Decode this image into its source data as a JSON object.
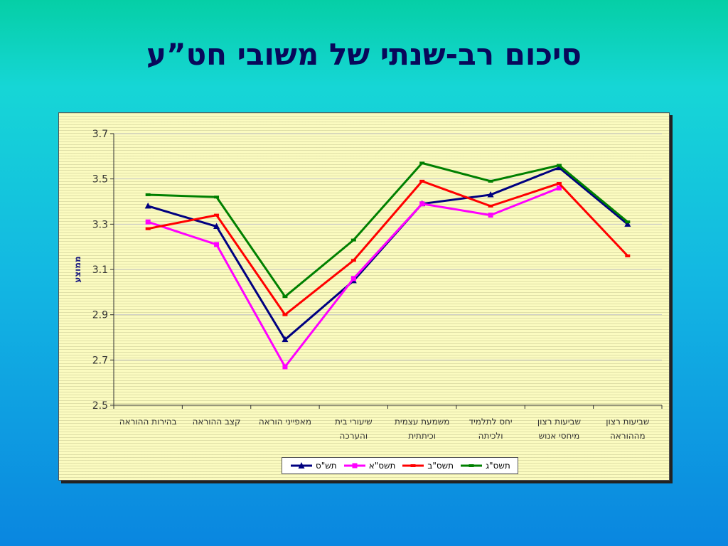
{
  "slide": {
    "title": "סיכום רב-שנתי של משובי חט”ע"
  },
  "chart_data": {
    "type": "line",
    "title": "",
    "ylabel": "ממוצע",
    "xlabel": "",
    "ylim": [
      2.5,
      3.7
    ],
    "yticks": [
      "2.5",
      "2.7",
      "2.9",
      "3.1",
      "3.3",
      "3.5",
      "3.7"
    ],
    "categories": [
      [
        "בהירות ההוראה"
      ],
      [
        "קצב ההוראה"
      ],
      [
        "מאפייני הוראה"
      ],
      [
        "שיעורי בית",
        "והערכה"
      ],
      [
        "משמעת עצמית",
        "וכיתתית"
      ],
      [
        "יחס לתלמיד",
        "ולכיתה"
      ],
      [
        "שביעות רצון",
        "מיחסי אנוש"
      ],
      [
        "שביעות רצון",
        "מההוראה"
      ]
    ],
    "series": [
      {
        "name": "תש\"ס",
        "color": "#000080",
        "marker": "triangle",
        "values": [
          3.38,
          3.29,
          2.79,
          3.05,
          3.39,
          3.43,
          3.55,
          3.3
        ]
      },
      {
        "name": "תשס\"א",
        "color": "#ff00ff",
        "marker": "square",
        "values": [
          3.31,
          3.21,
          2.67,
          3.06,
          3.39,
          3.34,
          3.46,
          null
        ]
      },
      {
        "name": "תשס\"ב",
        "color": "#ff0000",
        "marker": "dash",
        "values": [
          3.28,
          3.34,
          2.9,
          3.14,
          3.49,
          3.38,
          3.48,
          3.16
        ]
      },
      {
        "name": "תשס\"ג",
        "color": "#008000",
        "marker": "dash",
        "values": [
          3.43,
          3.42,
          2.98,
          3.23,
          3.57,
          3.49,
          3.56,
          3.31
        ]
      }
    ],
    "legend": "bottom",
    "grid": true,
    "background_color": "#fbfbc0"
  }
}
